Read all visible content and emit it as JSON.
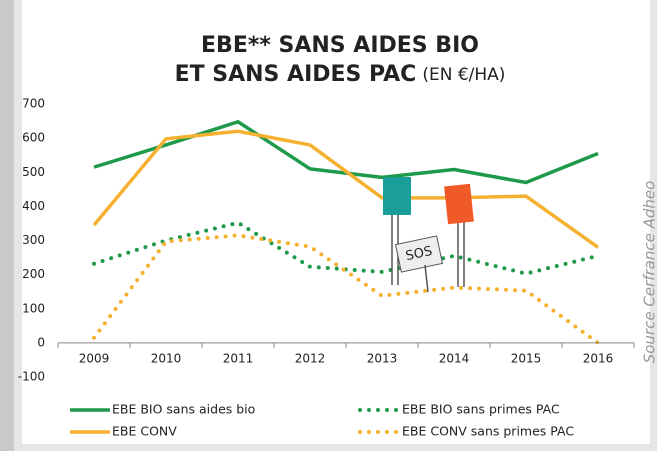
{
  "chart_data": {
    "type": "line",
    "title": [
      "EBE** SANS AIDES BIO",
      "ET SANS AIDES PAC"
    ],
    "unit": "(EN €/HA)",
    "source": "Source Cerfrance Adheo",
    "annotation": "SOS",
    "categories": [
      "2009",
      "2010",
      "2011",
      "2012",
      "2013",
      "2014",
      "2015",
      "2016"
    ],
    "ylim": [
      -100,
      700
    ],
    "yticks": [
      -100,
      0,
      100,
      200,
      300,
      400,
      500,
      600,
      700
    ],
    "series": [
      {
        "name": "EBE BIO sans aides bio",
        "color": "#1e9a4a",
        "dash": "solid",
        "values": [
          515,
          580,
          648,
          510,
          485,
          508,
          470,
          555
        ]
      },
      {
        "name": "EBE BIO sans primes PAC",
        "color": "#1e9a4a",
        "dash": "dotted",
        "values": [
          232,
          300,
          352,
          223,
          208,
          255,
          203,
          255
        ]
      },
      {
        "name": "EBE CONV",
        "color": "#f5b12f",
        "dash": "solid",
        "values": [
          345,
          598,
          620,
          580,
          425,
          425,
          430,
          280
        ]
      },
      {
        "name": "EBE CONV sans primes PAC",
        "color": "#f5b12f",
        "dash": "dotted",
        "values": [
          15,
          297,
          315,
          282,
          138,
          162,
          153,
          0
        ]
      }
    ]
  }
}
